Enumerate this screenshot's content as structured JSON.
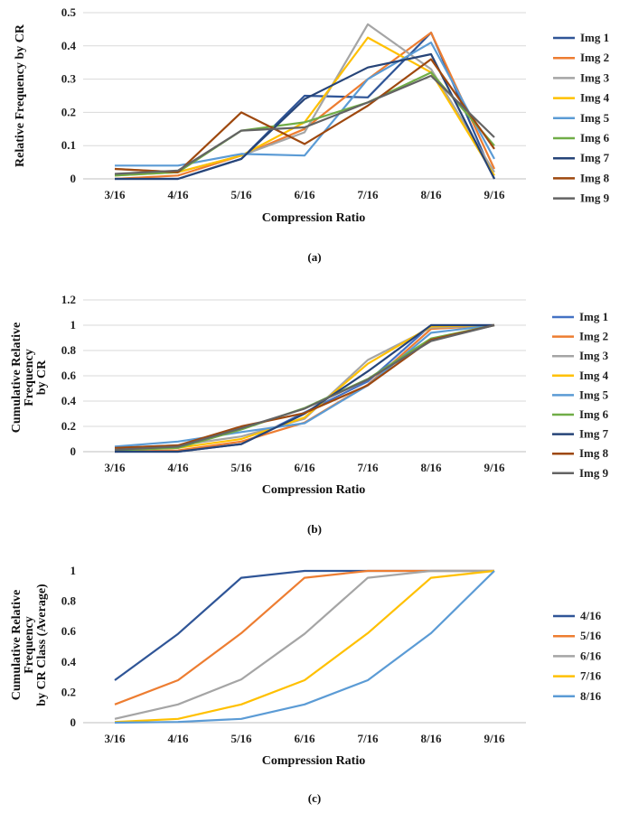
{
  "chart_data": [
    {
      "type": "line",
      "caption": "(a)",
      "xlabel": "Compression Ratio",
      "ylabel": "Relative Frequency by CR",
      "categories": [
        "3/16",
        "4/16",
        "5/16",
        "6/16",
        "7/16",
        "8/16",
        "9/16"
      ],
      "ylim": [
        0,
        0.5
      ],
      "yticks": [
        "0",
        "0.1",
        "0.2",
        "0.3",
        "0.4",
        "0.5"
      ],
      "grid": "horizontal",
      "legend_position": "right",
      "series": [
        {
          "name": "Img 1",
          "color": "#2f5597",
          "values": [
            0.0,
            0.0,
            0.06,
            0.25,
            0.245,
            0.44,
            0.0
          ]
        },
        {
          "name": "Img 2",
          "color": "#ed7d31",
          "values": [
            0.0,
            0.01,
            0.07,
            0.15,
            0.3,
            0.44,
            0.03
          ]
        },
        {
          "name": "Img 3",
          "color": "#a5a5a5",
          "values": [
            0.03,
            0.02,
            0.07,
            0.14,
            0.465,
            0.33,
            0.02
          ]
        },
        {
          "name": "Img 4",
          "color": "#ffc000",
          "values": [
            0.01,
            0.02,
            0.07,
            0.17,
            0.425,
            0.32,
            0.01
          ]
        },
        {
          "name": "Img 5",
          "color": "#5b9bd5",
          "values": [
            0.04,
            0.04,
            0.075,
            0.07,
            0.3,
            0.41,
            0.06
          ]
        },
        {
          "name": "Img 6",
          "color": "#70ad47",
          "values": [
            0.01,
            0.02,
            0.145,
            0.17,
            0.23,
            0.32,
            0.1
          ]
        },
        {
          "name": "Img 7",
          "color": "#264478",
          "values": [
            0.0,
            0.0,
            0.06,
            0.24,
            0.335,
            0.375,
            0.0
          ]
        },
        {
          "name": "Img 8",
          "color": "#9e480e",
          "values": [
            0.03,
            0.02,
            0.2,
            0.105,
            0.22,
            0.36,
            0.09
          ]
        },
        {
          "name": "Img 9",
          "color": "#636363",
          "values": [
            0.015,
            0.025,
            0.145,
            0.155,
            0.23,
            0.31,
            0.125
          ]
        }
      ]
    },
    {
      "type": "line",
      "caption": "(b)",
      "xlabel": "Compression Ratio",
      "ylabel": "Cumulative Relative Frequency by CR",
      "ylabel_lines": [
        "Cumulative Relative",
        "Frequency",
        "by CR"
      ],
      "categories": [
        "3/16",
        "4/16",
        "5/16",
        "6/16",
        "7/16",
        "8/16",
        "9/16"
      ],
      "ylim": [
        0,
        1.2
      ],
      "yticks": [
        "0",
        "0.2",
        "0.4",
        "0.6",
        "0.8",
        "1",
        "1.2"
      ],
      "grid": "horizontal",
      "legend_position": "right",
      "series": [
        {
          "name": "Img 1",
          "color": "#4472c4",
          "values": [
            0.0,
            0.0,
            0.06,
            0.31,
            0.555,
            1.0,
            1.0
          ]
        },
        {
          "name": "Img 2",
          "color": "#ed7d31",
          "values": [
            0.0,
            0.01,
            0.08,
            0.23,
            0.53,
            0.97,
            1.0
          ]
        },
        {
          "name": "Img 3",
          "color": "#a5a5a5",
          "values": [
            0.03,
            0.05,
            0.12,
            0.26,
            0.725,
            0.98,
            1.0
          ]
        },
        {
          "name": "Img 4",
          "color": "#ffc000",
          "values": [
            0.01,
            0.03,
            0.1,
            0.27,
            0.695,
            0.99,
            1.0
          ]
        },
        {
          "name": "Img 5",
          "color": "#5b9bd5",
          "values": [
            0.04,
            0.08,
            0.155,
            0.225,
            0.525,
            0.94,
            1.0
          ]
        },
        {
          "name": "Img 6",
          "color": "#70ad47",
          "values": [
            0.01,
            0.03,
            0.175,
            0.345,
            0.575,
            0.895,
            1.0
          ]
        },
        {
          "name": "Img 7",
          "color": "#264478",
          "values": [
            0.0,
            0.0,
            0.06,
            0.3,
            0.635,
            1.0,
            1.0
          ]
        },
        {
          "name": "Img 8",
          "color": "#9e480e",
          "values": [
            0.03,
            0.05,
            0.2,
            0.305,
            0.525,
            0.885,
            1.0
          ]
        },
        {
          "name": "Img 9",
          "color": "#636363",
          "values": [
            0.015,
            0.04,
            0.185,
            0.34,
            0.57,
            0.875,
            1.0
          ]
        }
      ]
    },
    {
      "type": "line",
      "caption": "(c)",
      "xlabel": "Compression Ratio",
      "ylabel": "Cumulative Relative Frequency by CR Class (Average)",
      "ylabel_lines": [
        "Cumulative Relative",
        "Frequency",
        "by CR Class (Average)"
      ],
      "categories": [
        "3/16",
        "4/16",
        "5/16",
        "6/16",
        "7/16",
        "8/16",
        "9/16"
      ],
      "ylim": [
        0,
        1
      ],
      "yticks": [
        "0",
        "0.2",
        "0.4",
        "0.6",
        "0.8",
        "1"
      ],
      "grid": "none",
      "legend_position": "right",
      "series": [
        {
          "name": "4/16",
          "color": "#2f5597",
          "values": [
            0.28,
            0.585,
            0.955,
            1.0,
            1.0,
            1.0,
            1.0
          ]
        },
        {
          "name": "5/16",
          "color": "#ed7d31",
          "values": [
            0.12,
            0.28,
            0.59,
            0.955,
            1.0,
            1.0,
            1.0
          ]
        },
        {
          "name": "6/16",
          "color": "#a5a5a5",
          "values": [
            0.025,
            0.12,
            0.285,
            0.585,
            0.955,
            1.0,
            1.0
          ]
        },
        {
          "name": "7/16",
          "color": "#ffc000",
          "values": [
            0.005,
            0.025,
            0.12,
            0.28,
            0.59,
            0.955,
            1.0
          ]
        },
        {
          "name": "8/16",
          "color": "#5b9bd5",
          "values": [
            0.0,
            0.005,
            0.025,
            0.12,
            0.28,
            0.59,
            1.0
          ]
        }
      ]
    }
  ]
}
